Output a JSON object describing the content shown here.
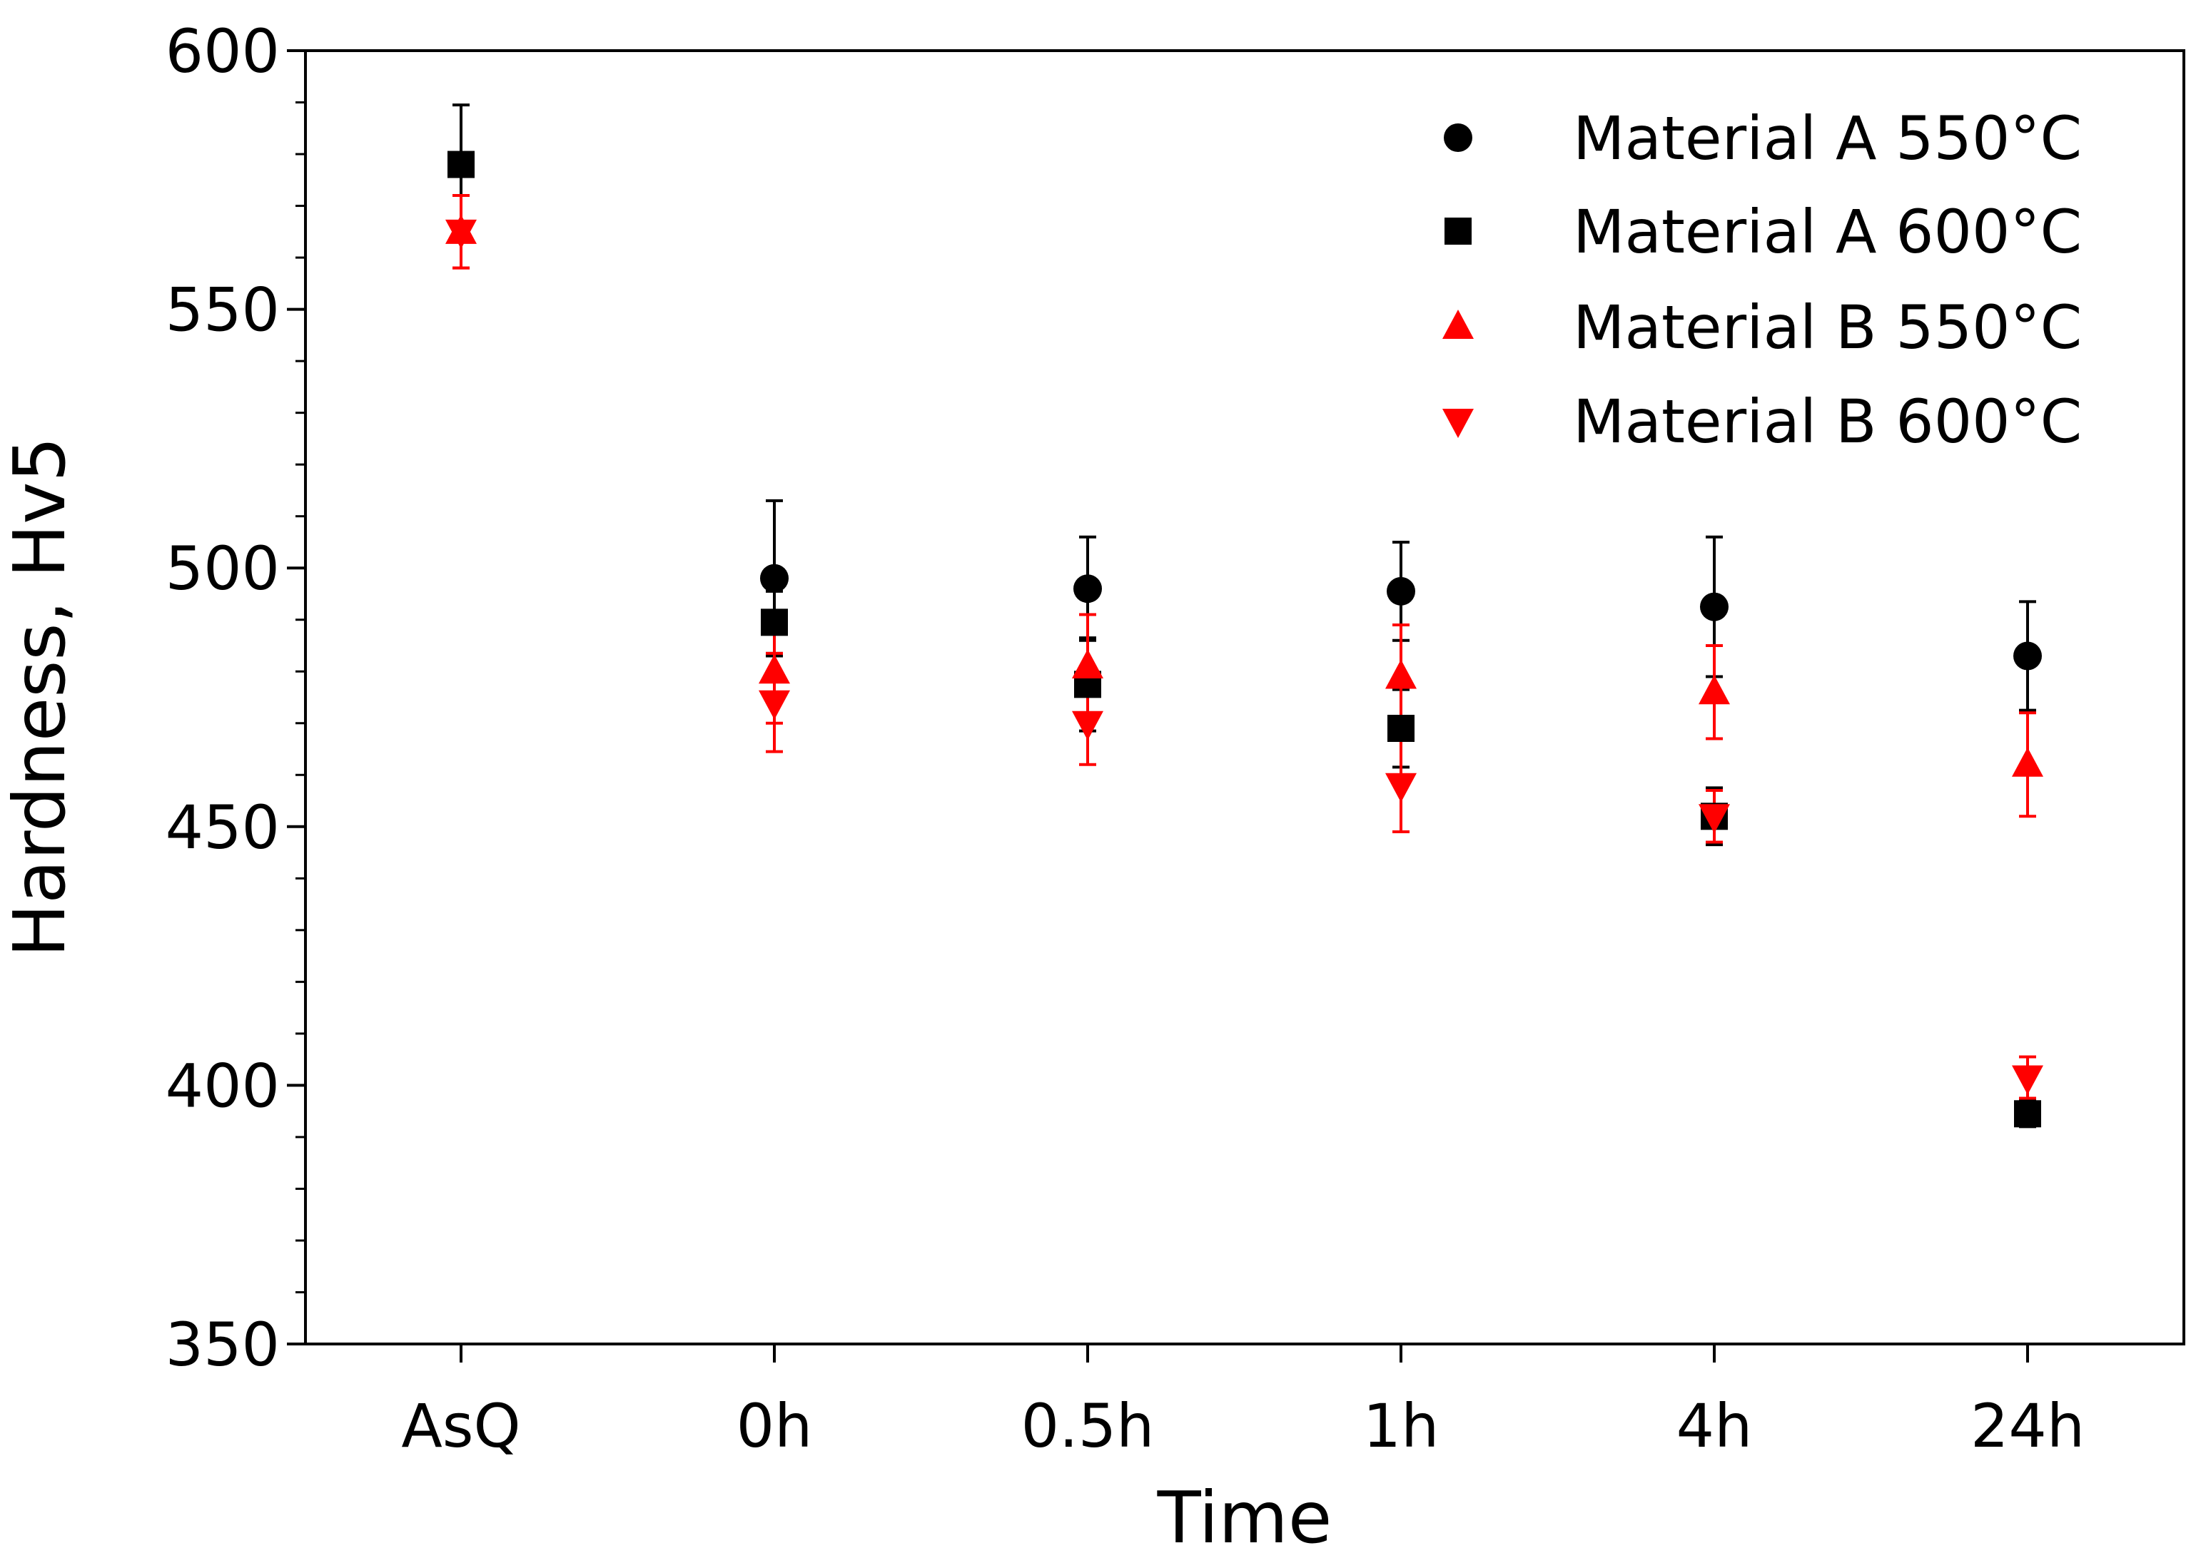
{
  "chart_data": {
    "type": "scatter",
    "xlabel": "Time",
    "ylabel": "Hardness, Hv5",
    "ylim": [
      350,
      600
    ],
    "yticks": [
      "350",
      "400",
      "450",
      "500",
      "550",
      "600"
    ],
    "yminor_step": 10,
    "categories": [
      "AsQ",
      "0h",
      "0.5h",
      "1h",
      "4h",
      "24h"
    ],
    "legend_position": "top-right",
    "grid": false,
    "series": [
      {
        "name": "Material A 550°C",
        "marker": "circle",
        "color": "#000000",
        "values": [
          null,
          498,
          496,
          495.5,
          492.5,
          483
        ],
        "errors": [
          null,
          15,
          10,
          9.5,
          13.5,
          10.5
        ]
      },
      {
        "name": "Material A 600°C",
        "marker": "square",
        "color": "#000000",
        "values": [
          578,
          489.5,
          477.5,
          469,
          452,
          394.5
        ],
        "errors": [
          11.5,
          6,
          9,
          7.5,
          5.5,
          2.5
        ]
      },
      {
        "name": "Material B 550°C",
        "marker": "triangle-up",
        "color": "#ff0000",
        "values": [
          565,
          480,
          481,
          479,
          476,
          462
        ],
        "errors": [
          7,
          10,
          10,
          10,
          9,
          10
        ]
      },
      {
        "name": "Material B 600°C",
        "marker": "triangle-down",
        "color": "#ff0000",
        "values": [
          565,
          474,
          470,
          458,
          452,
          401.5
        ],
        "errors": [
          7,
          9.5,
          8,
          9,
          5,
          4
        ]
      }
    ]
  }
}
